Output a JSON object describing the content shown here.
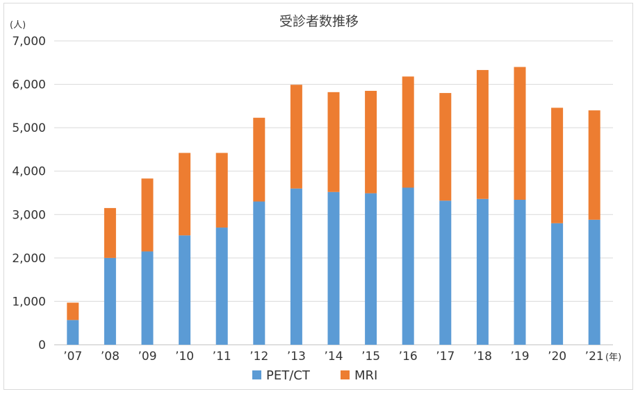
{
  "chart_data": {
    "type": "bar",
    "stacked": true,
    "title": "受診者数推移",
    "y_unit": "(人)",
    "x_unit": "(年)",
    "ylim": [
      0,
      7000
    ],
    "yticks": [
      "0",
      "1,000",
      "2,000",
      "3,000",
      "4,000",
      "5,000",
      "6,000",
      "7,000"
    ],
    "ytick_values": [
      0,
      1000,
      2000,
      3000,
      4000,
      5000,
      6000,
      7000
    ],
    "grid": true,
    "legend_position": "bottom",
    "categories": [
      "’07",
      "’08",
      "’09",
      "’10",
      "’11",
      "’12",
      "’13",
      "’14",
      "’15",
      "’16",
      "’17",
      "’18",
      "’19",
      "’20",
      "’21"
    ],
    "series": [
      {
        "name": "PET/CT",
        "color": "#5b9bd5",
        "values": [
          570,
          2000,
          2150,
          2520,
          2700,
          3300,
          3600,
          3520,
          3490,
          3620,
          3320,
          3360,
          3340,
          2800,
          2880
        ]
      },
      {
        "name": "MRI",
        "color": "#ed7d31",
        "values": [
          400,
          1150,
          1680,
          1900,
          1720,
          1930,
          2390,
          2300,
          2360,
          2560,
          2480,
          2970,
          3060,
          2660,
          2520
        ]
      }
    ]
  }
}
